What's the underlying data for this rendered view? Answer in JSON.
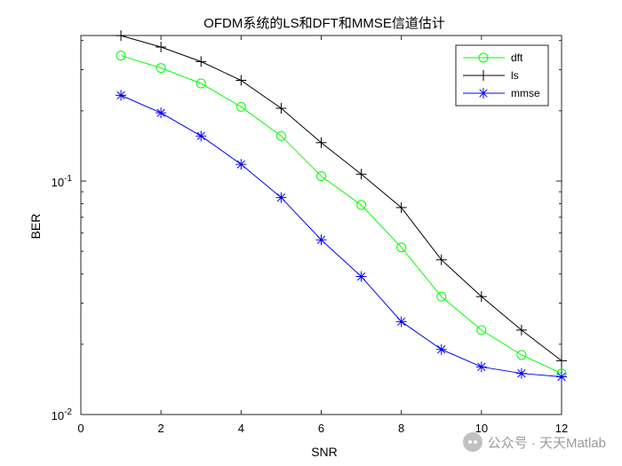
{
  "chart_data": {
    "type": "line",
    "title": "OFDM系统的LS和DFT和MMSE信道估计",
    "xlabel": "SNR",
    "ylabel": "BER",
    "xlim": [
      0,
      12
    ],
    "ylim": [
      0.01,
      0.4
    ],
    "yscale": "log",
    "grid": false,
    "legend_position": "top-right",
    "x_ticks": [
      "0",
      "2",
      "4",
      "6",
      "8",
      "10",
      "12"
    ],
    "y_ticks": [
      {
        "value": 0.1,
        "base": "10",
        "exp": "-1"
      },
      {
        "value": 0.01,
        "base": "10",
        "exp": "-2"
      }
    ],
    "x": [
      1,
      2,
      3,
      4,
      5,
      6,
      7,
      8,
      9,
      10,
      11,
      12
    ],
    "series": [
      {
        "name": "dft",
        "color": "#00ff00",
        "marker": "circle",
        "values": [
          0.345,
          0.305,
          0.262,
          0.208,
          0.156,
          0.105,
          0.079,
          0.052,
          0.032,
          0.023,
          0.018,
          0.015
        ]
      },
      {
        "name": "ls",
        "color": "#000000",
        "marker": "plus",
        "values": [
          0.42,
          0.375,
          0.325,
          0.27,
          0.205,
          0.146,
          0.107,
          0.077,
          0.046,
          0.032,
          0.023,
          0.017
        ]
      },
      {
        "name": "mmse",
        "color": "#0000ff",
        "marker": "asterisk",
        "values": [
          0.233,
          0.196,
          0.156,
          0.118,
          0.085,
          0.056,
          0.039,
          0.025,
          0.019,
          0.016,
          0.015,
          0.0145
        ]
      }
    ]
  },
  "watermark": {
    "icon": "wechat-icon",
    "text": "公众号 · 天天Matlab"
  }
}
